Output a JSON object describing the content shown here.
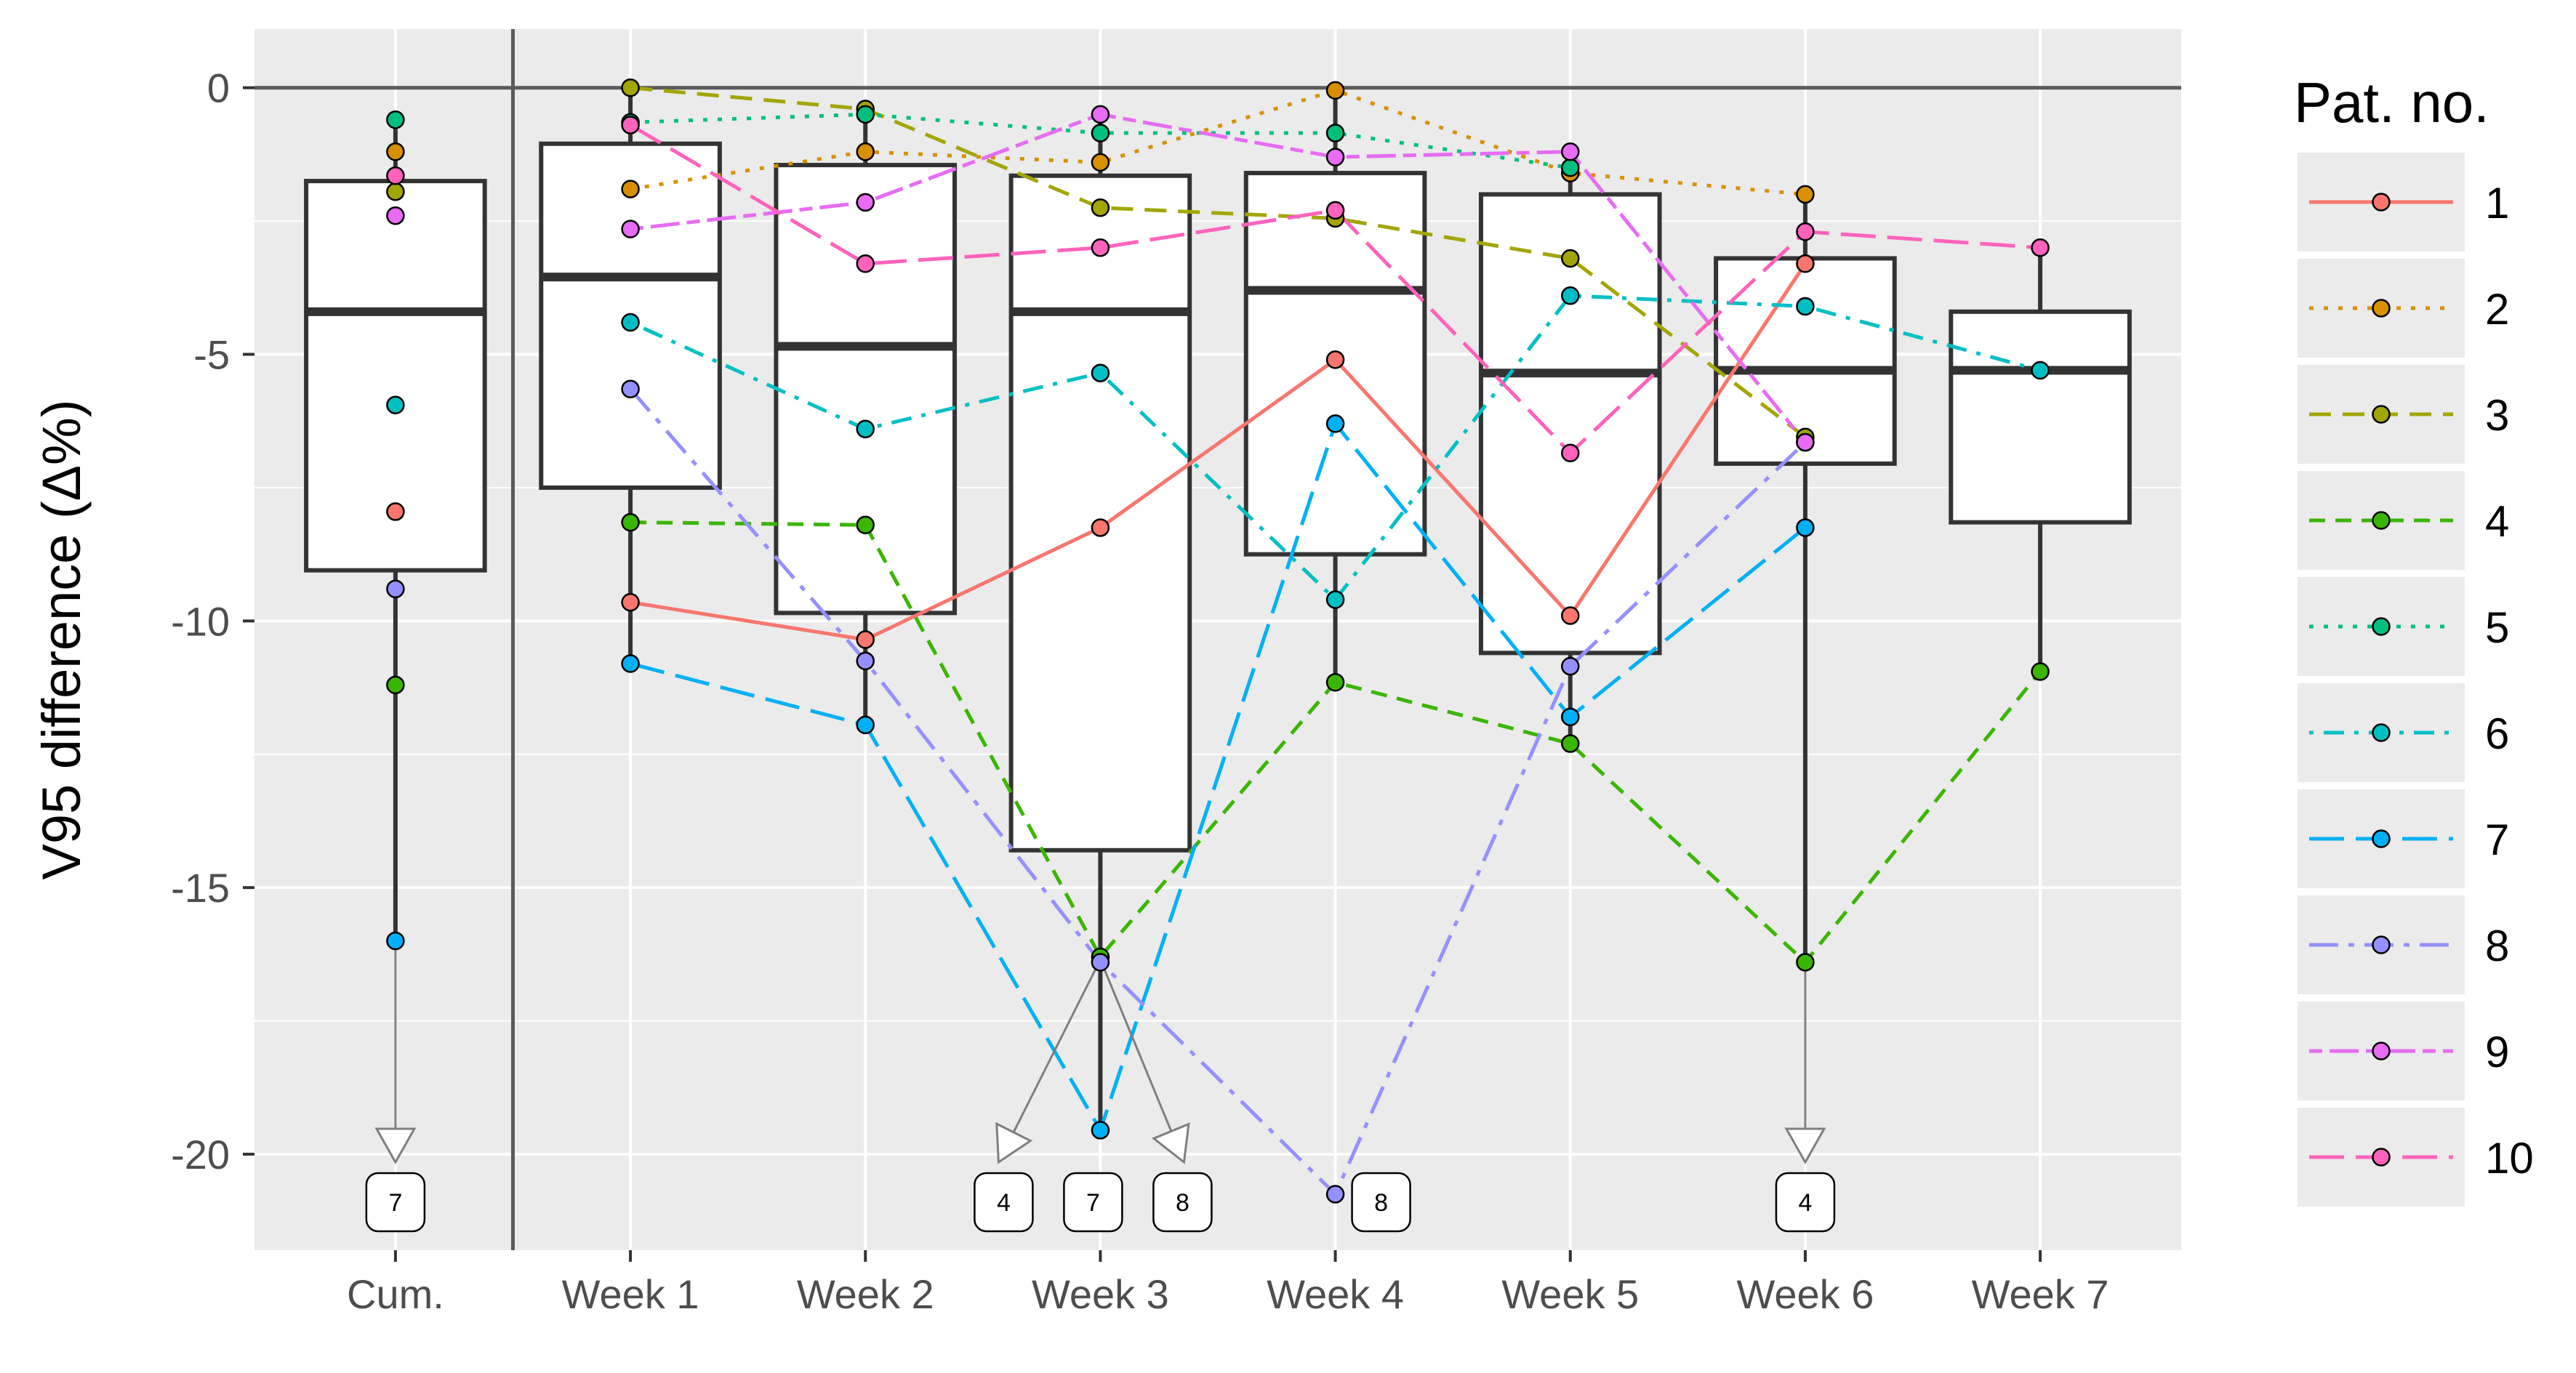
{
  "chart_data": {
    "type": "boxplot+line",
    "ylabel": "V95 difference (Δ%)",
    "ylim": [
      -21.8,
      1.1
    ],
    "yticks": [
      0,
      -5,
      -10,
      -15,
      -20
    ],
    "ytick_labels": [
      "0",
      "-5",
      "-10",
      "-15",
      "-20"
    ],
    "categories": [
      "Cum.",
      "Week 1",
      "Week 2",
      "Week 3",
      "Week 4",
      "Week 5",
      "Week 6",
      "Week 7"
    ],
    "grid": true,
    "reference_line_y": 0,
    "legend": {
      "title": "Pat. no.",
      "placement": "right"
    },
    "boxes": [
      {
        "category": "Cum.",
        "low": -16.0,
        "q1": -9.05,
        "median": -4.2,
        "q3": -1.75,
        "high": -0.6
      },
      {
        "category": "Week 1",
        "low": -10.8,
        "q1": -7.5,
        "median": -3.55,
        "q3": -1.05,
        "high": 0.0
      },
      {
        "category": "Week 2",
        "low": -11.95,
        "q1": -9.85,
        "median": -4.85,
        "q3": -1.45,
        "high": -0.45
      },
      {
        "category": "Week 3",
        "low": -19.55,
        "q1": -14.3,
        "median": -4.2,
        "q3": -1.65,
        "high": -0.55
      },
      {
        "category": "Week 4",
        "low": -11.15,
        "q1": -8.75,
        "median": -3.8,
        "q3": -1.6,
        "high": -0.05
      },
      {
        "category": "Week 5",
        "low": -12.3,
        "q1": -10.6,
        "median": -5.35,
        "q3": -2.0,
        "high": -1.25
      },
      {
        "category": "Week 6",
        "low": -16.4,
        "q1": -7.05,
        "median": -5.3,
        "q3": -3.2,
        "high": -2.0
      },
      {
        "category": "Week 7",
        "low": -10.95,
        "q1": -8.15,
        "median": -5.3,
        "q3": -4.2,
        "high": -3.0
      }
    ],
    "series": [
      {
        "name": "1",
        "color": "#F8766D",
        "dash": "solid",
        "points": [
          {
            "x": "Cum.",
            "y": -7.95
          },
          {
            "x": "Week 1",
            "y": -9.65
          },
          {
            "x": "Week 2",
            "y": -10.35
          },
          {
            "x": "Week 3",
            "y": -8.25
          },
          {
            "x": "Week 4",
            "y": -5.1
          },
          {
            "x": "Week 5",
            "y": -9.9
          },
          {
            "x": "Week 6",
            "y": -3.3
          }
        ]
      },
      {
        "name": "2",
        "color": "#D89000",
        "dash": "dotted",
        "points": [
          {
            "x": "Cum.",
            "y": -1.2
          },
          {
            "x": "Week 1",
            "y": -1.9
          },
          {
            "x": "Week 2",
            "y": -1.2
          },
          {
            "x": "Week 3",
            "y": -1.4
          },
          {
            "x": "Week 4",
            "y": -0.05
          },
          {
            "x": "Week 5",
            "y": -1.6
          },
          {
            "x": "Week 6",
            "y": -2.0
          }
        ]
      },
      {
        "name": "3",
        "color": "#A3A500",
        "dash": "dashed",
        "points": [
          {
            "x": "Cum.",
            "y": -1.95
          },
          {
            "x": "Week 1",
            "y": 0.0
          },
          {
            "x": "Week 2",
            "y": -0.4
          },
          {
            "x": "Week 3",
            "y": -2.25
          },
          {
            "x": "Week 4",
            "y": -2.45
          },
          {
            "x": "Week 5",
            "y": -3.2
          },
          {
            "x": "Week 6",
            "y": -6.55
          }
        ]
      },
      {
        "name": "4",
        "color": "#39B600",
        "dash": "dashed-short",
        "points": [
          {
            "x": "Cum.",
            "y": -11.2
          },
          {
            "x": "Week 1",
            "y": -8.15
          },
          {
            "x": "Week 2",
            "y": -8.2
          },
          {
            "x": "Week 3",
            "y": -16.3
          },
          {
            "x": "Week 4",
            "y": -11.15
          },
          {
            "x": "Week 5",
            "y": -12.3
          },
          {
            "x": "Week 6",
            "y": -16.4
          },
          {
            "x": "Week 7",
            "y": -10.95
          }
        ]
      },
      {
        "name": "5",
        "color": "#00BF7D",
        "dash": "dotted",
        "points": [
          {
            "x": "Cum.",
            "y": -0.6
          },
          {
            "x": "Week 1",
            "y": -0.65
          },
          {
            "x": "Week 2",
            "y": -0.5
          },
          {
            "x": "Week 3",
            "y": -0.85
          },
          {
            "x": "Week 4",
            "y": -0.85
          },
          {
            "x": "Week 5",
            "y": -1.5
          }
        ]
      },
      {
        "name": "6",
        "color": "#00BFC4",
        "dash": "dotdash",
        "points": [
          {
            "x": "Cum.",
            "y": -5.95
          },
          {
            "x": "Week 1",
            "y": -4.4
          },
          {
            "x": "Week 2",
            "y": -6.4
          },
          {
            "x": "Week 3",
            "y": -5.35
          },
          {
            "x": "Week 4",
            "y": -9.6
          },
          {
            "x": "Week 5",
            "y": -3.9
          },
          {
            "x": "Week 6",
            "y": -4.1
          },
          {
            "x": "Week 7",
            "y": -5.3
          }
        ]
      },
      {
        "name": "7",
        "color": "#00B0F6",
        "dash": "longdash",
        "points": [
          {
            "x": "Cum.",
            "y": -16.0
          },
          {
            "x": "Week 1",
            "y": -10.8
          },
          {
            "x": "Week 2",
            "y": -11.95
          },
          {
            "x": "Week 3",
            "y": -19.55
          },
          {
            "x": "Week 4",
            "y": -6.3
          },
          {
            "x": "Week 5",
            "y": -11.8
          },
          {
            "x": "Week 6",
            "y": -8.25
          }
        ]
      },
      {
        "name": "8",
        "color": "#9590FF",
        "dash": "longdash-dot",
        "points": [
          {
            "x": "Cum.",
            "y": -9.4
          },
          {
            "x": "Week 1",
            "y": -5.65
          },
          {
            "x": "Week 2",
            "y": -10.75
          },
          {
            "x": "Week 3",
            "y": -16.4
          },
          {
            "x": "Week 4",
            "y": -20.75
          },
          {
            "x": "Week 5",
            "y": -10.85
          },
          {
            "x": "Week 6",
            "y": -6.65
          }
        ]
      },
      {
        "name": "9",
        "color": "#E76BF3",
        "dash": "twodash",
        "points": [
          {
            "x": "Cum.",
            "y": -2.4
          },
          {
            "x": "Week 1",
            "y": -2.65
          },
          {
            "x": "Week 2",
            "y": -2.15
          },
          {
            "x": "Week 3",
            "y": -0.5
          },
          {
            "x": "Week 4",
            "y": -1.3
          },
          {
            "x": "Week 5",
            "y": -1.2
          },
          {
            "x": "Week 6",
            "y": -6.65
          }
        ]
      },
      {
        "name": "10",
        "color": "#FF62BC",
        "dash": "longdash",
        "points": [
          {
            "x": "Cum.",
            "y": -1.65
          },
          {
            "x": "Week 1",
            "y": -0.7
          },
          {
            "x": "Week 2",
            "y": -3.3
          },
          {
            "x": "Week 3",
            "y": -3.0
          },
          {
            "x": "Week 4",
            "y": -2.3
          },
          {
            "x": "Week 5",
            "y": -6.85
          },
          {
            "x": "Week 6",
            "y": -2.7
          },
          {
            "x": "Week 7",
            "y": -3.0
          }
        ]
      }
    ],
    "offscale_annotations": [
      {
        "category": "Cum.",
        "label": "7"
      },
      {
        "category": "Week 3",
        "label": "4"
      },
      {
        "category": "Week 3",
        "label": "7"
      },
      {
        "category": "Week 3",
        "label": "8"
      },
      {
        "category": "Week 4",
        "label": "8"
      },
      {
        "category": "Week 6",
        "label": "4"
      }
    ]
  }
}
